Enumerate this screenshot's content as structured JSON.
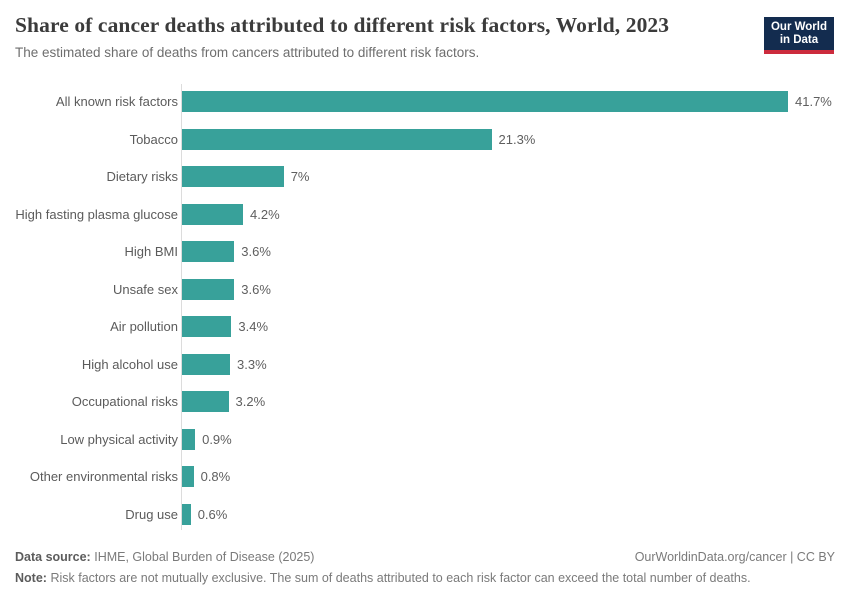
{
  "header": {
    "title": "Share of cancer deaths attributed to different risk factors, World, 2023",
    "subtitle": "The estimated share of deaths from cancers attributed to different risk factors.",
    "logo": {
      "line1": "Our World",
      "line2": "in Data"
    }
  },
  "colors": {
    "bar": "#38a19a",
    "logo_bg": "#132c4f",
    "logo_accent": "#cc2b3d",
    "axis_line": "#dcdcdc"
  },
  "chart_data": {
    "type": "bar",
    "orientation": "horizontal",
    "title": "Share of cancer deaths attributed to different risk factors, World, 2023",
    "xlabel": "",
    "ylabel": "",
    "unit": "%",
    "xlim": [
      0,
      45
    ],
    "grid": false,
    "legend": false,
    "categories": [
      "All known risk factors",
      "Tobacco",
      "Dietary risks",
      "High fasting plasma glucose",
      "High BMI",
      "Unsafe sex",
      "Air pollution",
      "High alcohol use",
      "Occupational risks",
      "Low physical activity",
      "Other environmental risks",
      "Drug use"
    ],
    "values": [
      41.7,
      21.3,
      7,
      4.2,
      3.6,
      3.6,
      3.4,
      3.3,
      3.2,
      0.9,
      0.8,
      0.6
    ],
    "value_labels": [
      "41.7%",
      "21.3%",
      "7%",
      "4.2%",
      "3.6%",
      "3.6%",
      "3.4%",
      "3.3%",
      "3.2%",
      "0.9%",
      "0.8%",
      "0.6%"
    ]
  },
  "footer": {
    "datasource_label": "Data source:",
    "datasource_value": "IHME, Global Burden of Disease (2025)",
    "credit": "OurWorldinData.org/cancer | CC BY",
    "note_label": "Note:",
    "note_value": "Risk factors are not mutually exclusive. The sum of deaths attributed to each risk factor can exceed the total number of deaths."
  }
}
